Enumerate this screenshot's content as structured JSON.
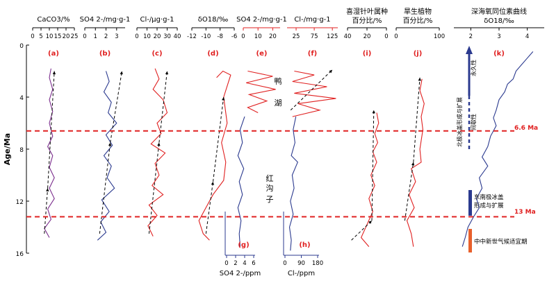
{
  "chart_data": {
    "type": "line",
    "y_axis": {
      "label": "Age/Ma",
      "ticks": [
        "0",
        "4",
        "8",
        "12",
        "16"
      ],
      "ylim": [
        0,
        16
      ],
      "reversed": true
    },
    "reference_lines": [
      {
        "age": 6.6,
        "label": "6.6 Ma",
        "color": "#e02020"
      },
      {
        "age": 13.2,
        "label": "13 Ma",
        "color": "#e02020"
      }
    ],
    "panels": [
      {
        "letter": "(a)",
        "title": "CaCO3/%",
        "color": "#7a2c8c",
        "ticks": [
          "0",
          "5",
          "10",
          "15",
          "20",
          "25"
        ],
        "xlim": [
          0,
          25
        ],
        "series": [
          [
            11,
            1.8
          ],
          [
            10,
            2.5
          ],
          [
            12,
            3.4
          ],
          [
            10,
            4.2
          ],
          [
            12,
            5.1
          ],
          [
            10,
            6.0
          ],
          [
            12,
            7.0
          ],
          [
            9,
            7.8
          ],
          [
            12,
            8.5
          ],
          [
            10,
            9.4
          ],
          [
            13,
            10.2
          ],
          [
            10,
            11.0
          ],
          [
            13,
            11.8
          ],
          [
            9,
            12.6
          ],
          [
            11,
            13.4
          ],
          [
            7,
            14.1
          ],
          [
            10,
            14.8
          ]
        ],
        "trends": [
          [
            [
              7,
              14.5
            ],
            [
              9,
              11.0
            ]
          ],
          [
            [
              9,
              11.0
            ],
            [
              13,
              2.0
            ]
          ]
        ]
      },
      {
        "letter": "(b)",
        "title": "SO4 2-/mg·g-1",
        "color": "#2b3a8f",
        "ticks": [
          "0",
          "1",
          "2",
          "3"
        ],
        "xlim": [
          0,
          3.8
        ],
        "series": [
          [
            2.0,
            2.0
          ],
          [
            2.3,
            2.8
          ],
          [
            1.8,
            3.6
          ],
          [
            2.5,
            4.4
          ],
          [
            2.2,
            5.2
          ],
          [
            3.0,
            6.0
          ],
          [
            2.0,
            6.9
          ],
          [
            2.6,
            7.7
          ],
          [
            1.8,
            8.5
          ],
          [
            2.5,
            9.3
          ],
          [
            2.1,
            10.2
          ],
          [
            2.8,
            11.0
          ],
          [
            1.6,
            11.9
          ],
          [
            2.3,
            12.8
          ],
          [
            1.5,
            13.6
          ],
          [
            2.0,
            14.4
          ],
          [
            1.2,
            15.0
          ]
        ],
        "trends": [
          [
            [
              1.4,
              14.5
            ],
            [
              2.4,
              7.5
            ]
          ],
          [
            [
              2.4,
              7.5
            ],
            [
              3.5,
              2.0
            ]
          ]
        ]
      },
      {
        "letter": "(c)",
        "title": "Cl-/μg·g-1",
        "color": "#e02020",
        "ticks": [
          "0",
          "10",
          "20",
          "30",
          "40"
        ],
        "xlim": [
          0,
          40
        ],
        "series": [
          [
            18,
            1.8
          ],
          [
            22,
            2.6
          ],
          [
            16,
            3.4
          ],
          [
            26,
            4.2
          ],
          [
            30,
            5.2
          ],
          [
            20,
            6.0
          ],
          [
            24,
            6.8
          ],
          [
            14,
            7.6
          ],
          [
            28,
            8.3
          ],
          [
            18,
            9.1
          ],
          [
            22,
            10.0
          ],
          [
            15,
            10.8
          ],
          [
            26,
            11.5
          ],
          [
            12,
            12.3
          ],
          [
            20,
            13.1
          ],
          [
            11,
            13.9
          ],
          [
            16,
            14.7
          ]
        ],
        "trends": [
          [
            [
              12,
              14.5
            ],
            [
              22,
              7.5
            ]
          ],
          [
            [
              22,
              7.5
            ],
            [
              30,
              2.0
            ]
          ]
        ]
      },
      {
        "letter": "(d)",
        "title": "δO18/‰",
        "color": "#e02020",
        "ticks": [
          "-12",
          "-10",
          "-8",
          "-6"
        ],
        "xlim": [
          -12,
          -6
        ],
        "series": [
          [
            -8.5,
            2.5
          ],
          [
            -7.6,
            2.0
          ],
          [
            -6.5,
            2.3
          ],
          [
            -7.5,
            4.0
          ],
          [
            -7.0,
            6.0
          ],
          [
            -7.8,
            7.5
          ],
          [
            -7.2,
            9.0
          ],
          [
            -7.5,
            10.4
          ],
          [
            -9.0,
            11.5
          ],
          [
            -10.0,
            12.5
          ],
          [
            -11.0,
            13.5
          ],
          [
            -10.4,
            14.5
          ],
          [
            -9.5,
            15.0
          ]
        ],
        "trends": [
          [
            [
              -10.0,
              14.5
            ],
            [
              -9.0,
              10.5
            ]
          ],
          [
            [
              -9.0,
              10.5
            ],
            [
              -7.5,
              4.0
            ]
          ]
        ]
      },
      {
        "letter": "(e)",
        "title": "SO4 2-/mg·g-1",
        "color": "#e02020",
        "ticks": [
          "0",
          "10",
          "20"
        ],
        "xlim": [
          0,
          25
        ],
        "series": [
          [
            3,
            2.0
          ],
          [
            20,
            2.4
          ],
          [
            2,
            2.9
          ],
          [
            22,
            3.4
          ],
          [
            4,
            3.8
          ],
          [
            16,
            4.3
          ],
          [
            3,
            4.8
          ],
          [
            10,
            5.2
          ]
        ],
        "trends": []
      },
      {
        "letter": "(f)",
        "title": "Cl-/mg·g-1",
        "color": "#e02020",
        "ticks": [
          "25",
          "75",
          "125"
        ],
        "xlim": [
          0,
          140
        ],
        "series": [
          [
            20,
            2.0
          ],
          [
            75,
            2.3
          ],
          [
            15,
            2.8
          ],
          [
            110,
            3.2
          ],
          [
            20,
            3.7
          ],
          [
            135,
            4.1
          ],
          [
            30,
            4.5
          ],
          [
            90,
            5.0
          ],
          [
            15,
            5.5
          ]
        ],
        "trends": [
          [
            [
              10,
              5.0
            ],
            [
              125,
              1.9
            ]
          ]
        ]
      },
      {
        "letter": "(i)",
        "title_line1": "喜湿针叶属种",
        "title_line2": "百分比/%",
        "color": "#e02020",
        "ticks": [
          "40",
          "20",
          "0"
        ],
        "xlim": [
          40,
          0
        ],
        "series": [
          [
            10,
            5.2
          ],
          [
            8,
            6.0
          ],
          [
            12,
            6.8
          ],
          [
            9,
            7.5
          ],
          [
            14,
            8.2
          ],
          [
            10,
            9.0
          ],
          [
            16,
            10.0
          ],
          [
            12,
            10.8
          ],
          [
            18,
            11.8
          ],
          [
            14,
            12.8
          ],
          [
            20,
            13.8
          ],
          [
            26,
            14.8
          ],
          [
            18,
            15.5
          ]
        ],
        "trends": [
          [
            [
              36,
              15.0
            ],
            [
              15,
              13.5
            ]
          ],
          [
            [
              15,
              13.5
            ],
            [
              13,
              5.0
            ]
          ]
        ]
      },
      {
        "letter": "(j)",
        "title_line1": "旱生植物",
        "title_line2": "百分比/%",
        "color": "#e02020",
        "ticks": [
          "0",
          "100"
        ],
        "xlim": [
          0,
          100
        ],
        "series": [
          [
            60,
            2.6
          ],
          [
            55,
            3.5
          ],
          [
            65,
            4.5
          ],
          [
            58,
            5.5
          ],
          [
            62,
            6.5
          ],
          [
            55,
            8.0
          ],
          [
            58,
            9.0
          ],
          [
            35,
            9.5
          ],
          [
            45,
            10.5
          ],
          [
            30,
            11.5
          ],
          [
            42,
            12.5
          ],
          [
            25,
            13.5
          ],
          [
            35,
            14.5
          ],
          [
            40,
            15.5
          ]
        ],
        "trends": [
          [
            [
              20,
              13.5
            ],
            [
              40,
              9.0
            ]
          ],
          [
            [
              40,
              9.0
            ],
            [
              55,
              2.5
            ]
          ]
        ]
      },
      {
        "letter": "(k)",
        "title_line1": "深海氧同位素曲线",
        "title_line2": "δO18/‰",
        "color": "#2b3a8f",
        "ticks": [
          "2",
          "3",
          "4"
        ],
        "xlim": [
          1.4,
          4.6
        ],
        "series": [
          [
            4.2,
            0.5
          ],
          [
            4.0,
            1.0
          ],
          [
            3.8,
            1.5
          ],
          [
            3.6,
            2.0
          ],
          [
            3.5,
            2.6
          ],
          [
            3.3,
            3.0
          ],
          [
            3.2,
            3.6
          ],
          [
            3.0,
            4.2
          ],
          [
            2.9,
            5.0
          ],
          [
            2.8,
            5.6
          ],
          [
            2.9,
            6.2
          ],
          [
            2.7,
            7.0
          ],
          [
            2.6,
            7.8
          ],
          [
            2.4,
            8.6
          ],
          [
            2.6,
            9.3
          ],
          [
            2.3,
            10.2
          ],
          [
            2.4,
            11.0
          ],
          [
            2.2,
            11.8
          ],
          [
            2.3,
            12.5
          ],
          [
            2.1,
            13.2
          ],
          [
            1.9,
            14.0
          ],
          [
            1.8,
            14.8
          ],
          [
            1.7,
            15.5
          ]
        ],
        "trends": []
      }
    ],
    "bottom_axes": [
      {
        "letter": "(g)",
        "label": "SO4 2-/ppm",
        "ticks": [
          "0",
          "2",
          "4",
          "6"
        ],
        "xlim": [
          0,
          6
        ],
        "color": "#2b3a8f",
        "series": [
          [
            4.0,
            5.5
          ],
          [
            3.0,
            6.5
          ],
          [
            3.5,
            7.5
          ],
          [
            2.5,
            8.5
          ],
          [
            3.8,
            9.5
          ],
          [
            2.8,
            10.5
          ],
          [
            3.5,
            11.5
          ],
          [
            2.5,
            12.5
          ],
          [
            3.2,
            13.5
          ],
          [
            2.8,
            14.5
          ],
          [
            3.0,
            15.5
          ]
        ]
      },
      {
        "letter": "(h)",
        "label": "Cl-/ppm",
        "ticks": [
          "0",
          "90",
          "180"
        ],
        "xlim": [
          0,
          180
        ],
        "color": "#2b3a8f",
        "series": [
          [
            60,
            5.5
          ],
          [
            45,
            6.5
          ],
          [
            55,
            7.5
          ],
          [
            35,
            8.5
          ],
          [
            70,
            9.0
          ],
          [
            40,
            10.0
          ],
          [
            50,
            11.0
          ],
          [
            30,
            12.0
          ],
          [
            45,
            13.0
          ],
          [
            25,
            14.0
          ],
          [
            35,
            15.0
          ],
          [
            30,
            15.8
          ]
        ]
      }
    ],
    "annotations": {
      "yahu": [
        "鸭",
        "湖"
      ],
      "honggouzi": [
        "红",
        "沟",
        "子"
      ],
      "ice_north": "北极冰盖形成与扩展",
      "intermittent": "间歇性",
      "permanent": "永久性",
      "ice_east": "东南极冰盖形成与扩展",
      "mmco": "中中新世气候适宜期"
    },
    "refs": {
      "d": "[56]",
      "e": "[45]",
      "f": "[45]",
      "i": "[58]",
      "j": "[59]",
      "k": "[63]",
      "g": "[57]",
      "h": "[57]"
    }
  }
}
